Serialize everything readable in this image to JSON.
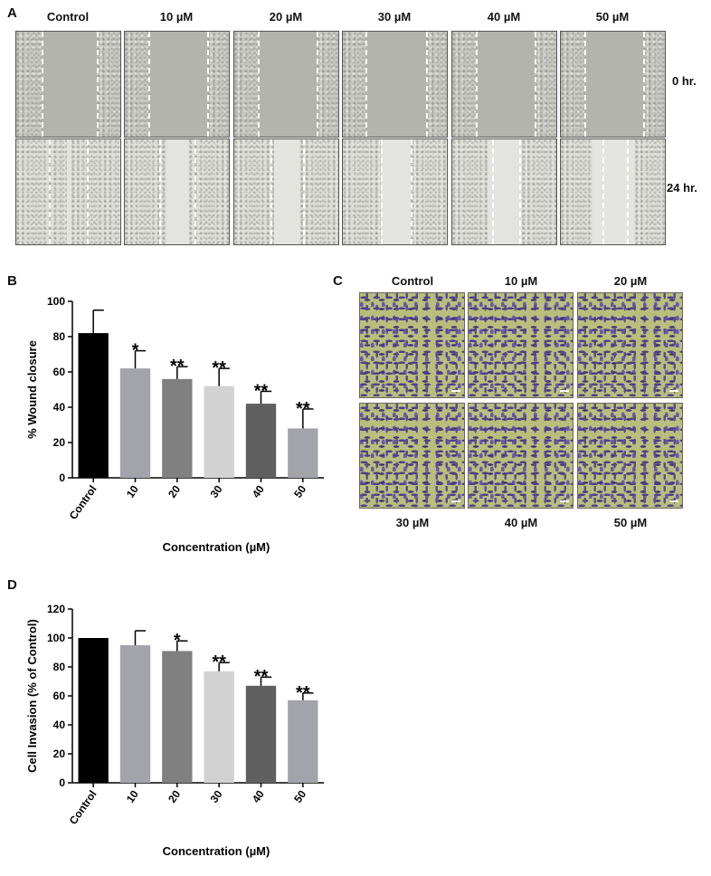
{
  "panelA": {
    "letter": "A",
    "columns": [
      "Control",
      "10 µM",
      "20 µM",
      "30 µM",
      "40 µM",
      "50 µM"
    ],
    "rows": [
      "0 hr.",
      "24 hr."
    ],
    "images": {
      "0 hr.": [
        {
          "label": "Control",
          "gap_fraction": 0.52
        },
        {
          "label": "10 µM",
          "gap_fraction": 0.55
        },
        {
          "label": "20 µM",
          "gap_fraction": 0.56
        },
        {
          "label": "30 µM",
          "gap_fraction": 0.58
        },
        {
          "label": "40 µM",
          "gap_fraction": 0.56
        },
        {
          "label": "50 µM",
          "gap_fraction": 0.56
        }
      ],
      "24 hr.": [
        {
          "label": "Control",
          "gap_fraction": 0.05
        },
        {
          "label": "10 µM",
          "gap_fraction": 0.22
        },
        {
          "label": "20 µM",
          "gap_fraction": 0.25
        },
        {
          "label": "30 µM",
          "gap_fraction": 0.28
        },
        {
          "label": "40 µM",
          "gap_fraction": 0.32
        },
        {
          "label": "50 µM",
          "gap_fraction": 0.4
        }
      ]
    }
  },
  "panelB": {
    "letter": "B",
    "chart_data": {
      "type": "bar",
      "categories": [
        "Control",
        "10",
        "20",
        "30",
        "40",
        "50"
      ],
      "values": [
        82,
        62,
        56,
        52,
        42,
        28
      ],
      "errors": [
        13,
        10,
        7,
        10,
        7,
        11
      ],
      "significance": [
        "",
        "*",
        "**",
        "**",
        "**",
        "**"
      ],
      "bar_colors": [
        "#000000",
        "#a3a3ab",
        "#808080",
        "#d2d2d2",
        "#5f5f5f",
        "#a3a3ab"
      ],
      "xlabel": "Concentration (µM)",
      "ylabel": "% Wound closure",
      "ylim": [
        0,
        100
      ],
      "yticks": [
        0,
        20,
        40,
        60,
        80,
        100
      ],
      "grid": false
    }
  },
  "panelC": {
    "letter": "C",
    "top_labels": [
      "Control",
      "10 µM",
      "20 µM"
    ],
    "bottom_labels": [
      "30 µM",
      "40 µM",
      "50 µM"
    ]
  },
  "panelD": {
    "letter": "D",
    "chart_data": {
      "type": "bar",
      "categories": [
        "Control",
        "10",
        "20",
        "30",
        "40",
        "50"
      ],
      "values": [
        100,
        95,
        91,
        77,
        67,
        57
      ],
      "errors": [
        0,
        10,
        7,
        6,
        6,
        5
      ],
      "significance": [
        "",
        "",
        "*",
        "**",
        "**",
        "**"
      ],
      "bar_colors": [
        "#000000",
        "#a3a3ab",
        "#808080",
        "#d2d2d2",
        "#5f5f5f",
        "#a3a3ab"
      ],
      "xlabel": "Concentration (µM)",
      "ylabel": "Cell Invasion (% of Control)",
      "ylim": [
        0,
        120
      ],
      "yticks": [
        0,
        20,
        40,
        60,
        80,
        100,
        120
      ],
      "grid": false
    }
  }
}
